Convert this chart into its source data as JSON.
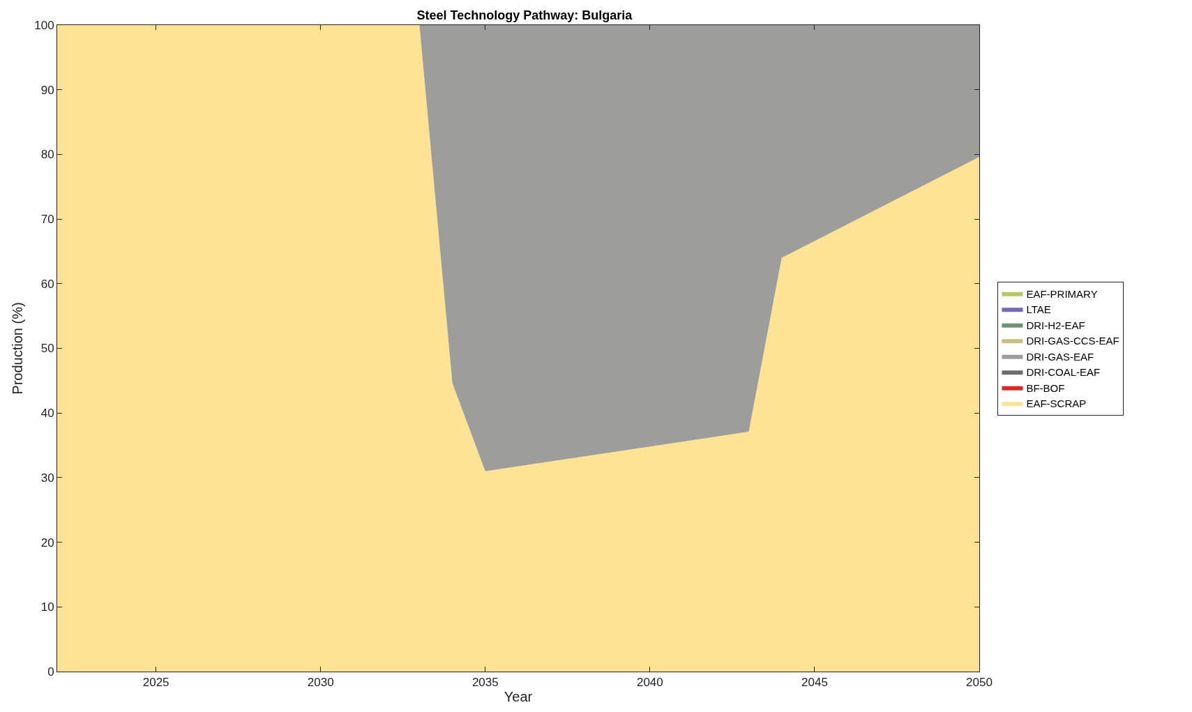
{
  "chart_data": {
    "type": "area",
    "stacked": true,
    "title": "Steel Technology Pathway: Bulgaria",
    "xlabel": "Year",
    "ylabel": "Production (%)",
    "x": [
      2022,
      2033,
      2034,
      2035,
      2043,
      2044,
      2050
    ],
    "series": [
      {
        "name": "EAF-SCRAP",
        "color": "#fee394",
        "values": [
          100,
          100,
          44.6,
          31,
          37.1,
          64,
          79.6
        ]
      },
      {
        "name": "BF-BOF",
        "color": "#d42a28",
        "values": [
          null,
          null,
          null,
          null,
          null,
          null,
          null
        ]
      },
      {
        "name": "DRI-COAL-EAF",
        "color": "#6d6d6d",
        "values": [
          null,
          null,
          null,
          null,
          null,
          null,
          null
        ]
      },
      {
        "name": "DRI-GAS-EAF",
        "color": "#9d9d9b",
        "values": [
          0,
          0,
          55.4,
          69,
          62.9,
          36,
          20.4
        ]
      },
      {
        "name": "DRI-GAS-CCS-EAF",
        "color": "#c8bd82",
        "values": [
          null,
          null,
          null,
          null,
          null,
          null,
          null
        ]
      },
      {
        "name": "DRI-H2-EAF",
        "color": "#6f937a",
        "values": [
          null,
          null,
          null,
          null,
          null,
          null,
          null
        ]
      },
      {
        "name": "LTAE",
        "color": "#7468b8",
        "values": [
          null,
          null,
          null,
          null,
          null,
          null,
          null
        ]
      },
      {
        "name": "EAF-PRIMARY",
        "color": "#b5c36a",
        "values": [
          null,
          null,
          null,
          null,
          null,
          null,
          null
        ]
      }
    ],
    "xlim": [
      2022,
      2050
    ],
    "xticks": [
      2025,
      2030,
      2035,
      2040,
      2045,
      2050
    ],
    "ylim": [
      0,
      100
    ],
    "yticks": [
      0,
      10,
      20,
      30,
      40,
      50,
      60,
      70,
      80,
      90,
      100
    ],
    "legend": "right"
  }
}
